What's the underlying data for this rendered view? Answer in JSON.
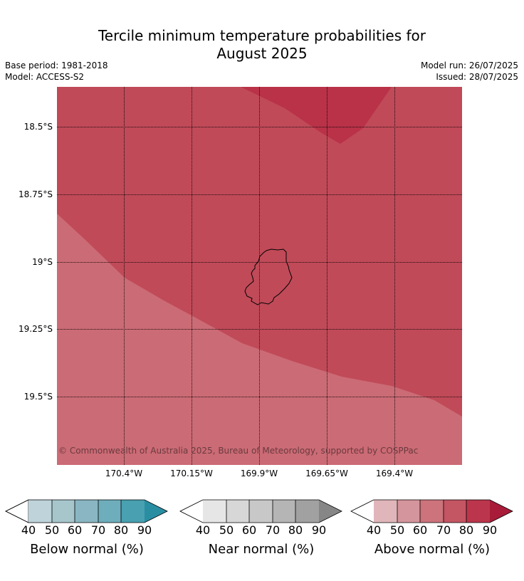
{
  "title_line1": "Tercile minimum temperature probabilities for",
  "title_line2": "August 2025",
  "meta": {
    "base_period": "Base period: 1981-2018",
    "model": "Model: ACCESS-S2",
    "model_run": "Model run: 26/07/2025",
    "issued": "Issued: 28/07/2025"
  },
  "map": {
    "copyright": "© Commonwealth of Australia 2025, Bureau of Meteorology, supported by COSPPac",
    "lat_labels": [
      "18.5°S",
      "18.75°S",
      "19°S",
      "19.25°S",
      "19.5°S"
    ],
    "lon_labels": [
      "170.4°W",
      "170.15°W",
      "169.9°W",
      "169.65°W",
      "169.4°W"
    ],
    "zones": [
      {
        "category": "Above normal",
        "band": "60-70",
        "color": "#cb6b75"
      },
      {
        "category": "Above normal",
        "band": "70-80",
        "color": "#c04a58"
      },
      {
        "category": "Above normal",
        "band": "80-90",
        "color": "#b93248"
      }
    ],
    "island_outline_color": "#000000"
  },
  "legends": [
    {
      "title": "Below normal (%)",
      "ticks": [
        "40",
        "50",
        "60",
        "70",
        "80",
        "90"
      ],
      "colors": [
        "#ffffff",
        "#bed3da",
        "#a6c6cc",
        "#89b6c2",
        "#6eadbb",
        "#48a0b0",
        "#2a8ea3"
      ]
    },
    {
      "title": "Near normal (%)",
      "ticks": [
        "40",
        "50",
        "60",
        "70",
        "80",
        "90"
      ],
      "colors": [
        "#ffffff",
        "#e6e6e6",
        "#d7d7d7",
        "#c8c8c8",
        "#b5b5b5",
        "#a1a1a1",
        "#868686"
      ]
    },
    {
      "title": "Above normal (%)",
      "ticks": [
        "40",
        "50",
        "60",
        "70",
        "80",
        "90"
      ],
      "colors": [
        "#ffffff",
        "#e0b6bb",
        "#d5959c",
        "#cc737c",
        "#c45563",
        "#bb364c",
        "#a81c39"
      ]
    }
  ]
}
